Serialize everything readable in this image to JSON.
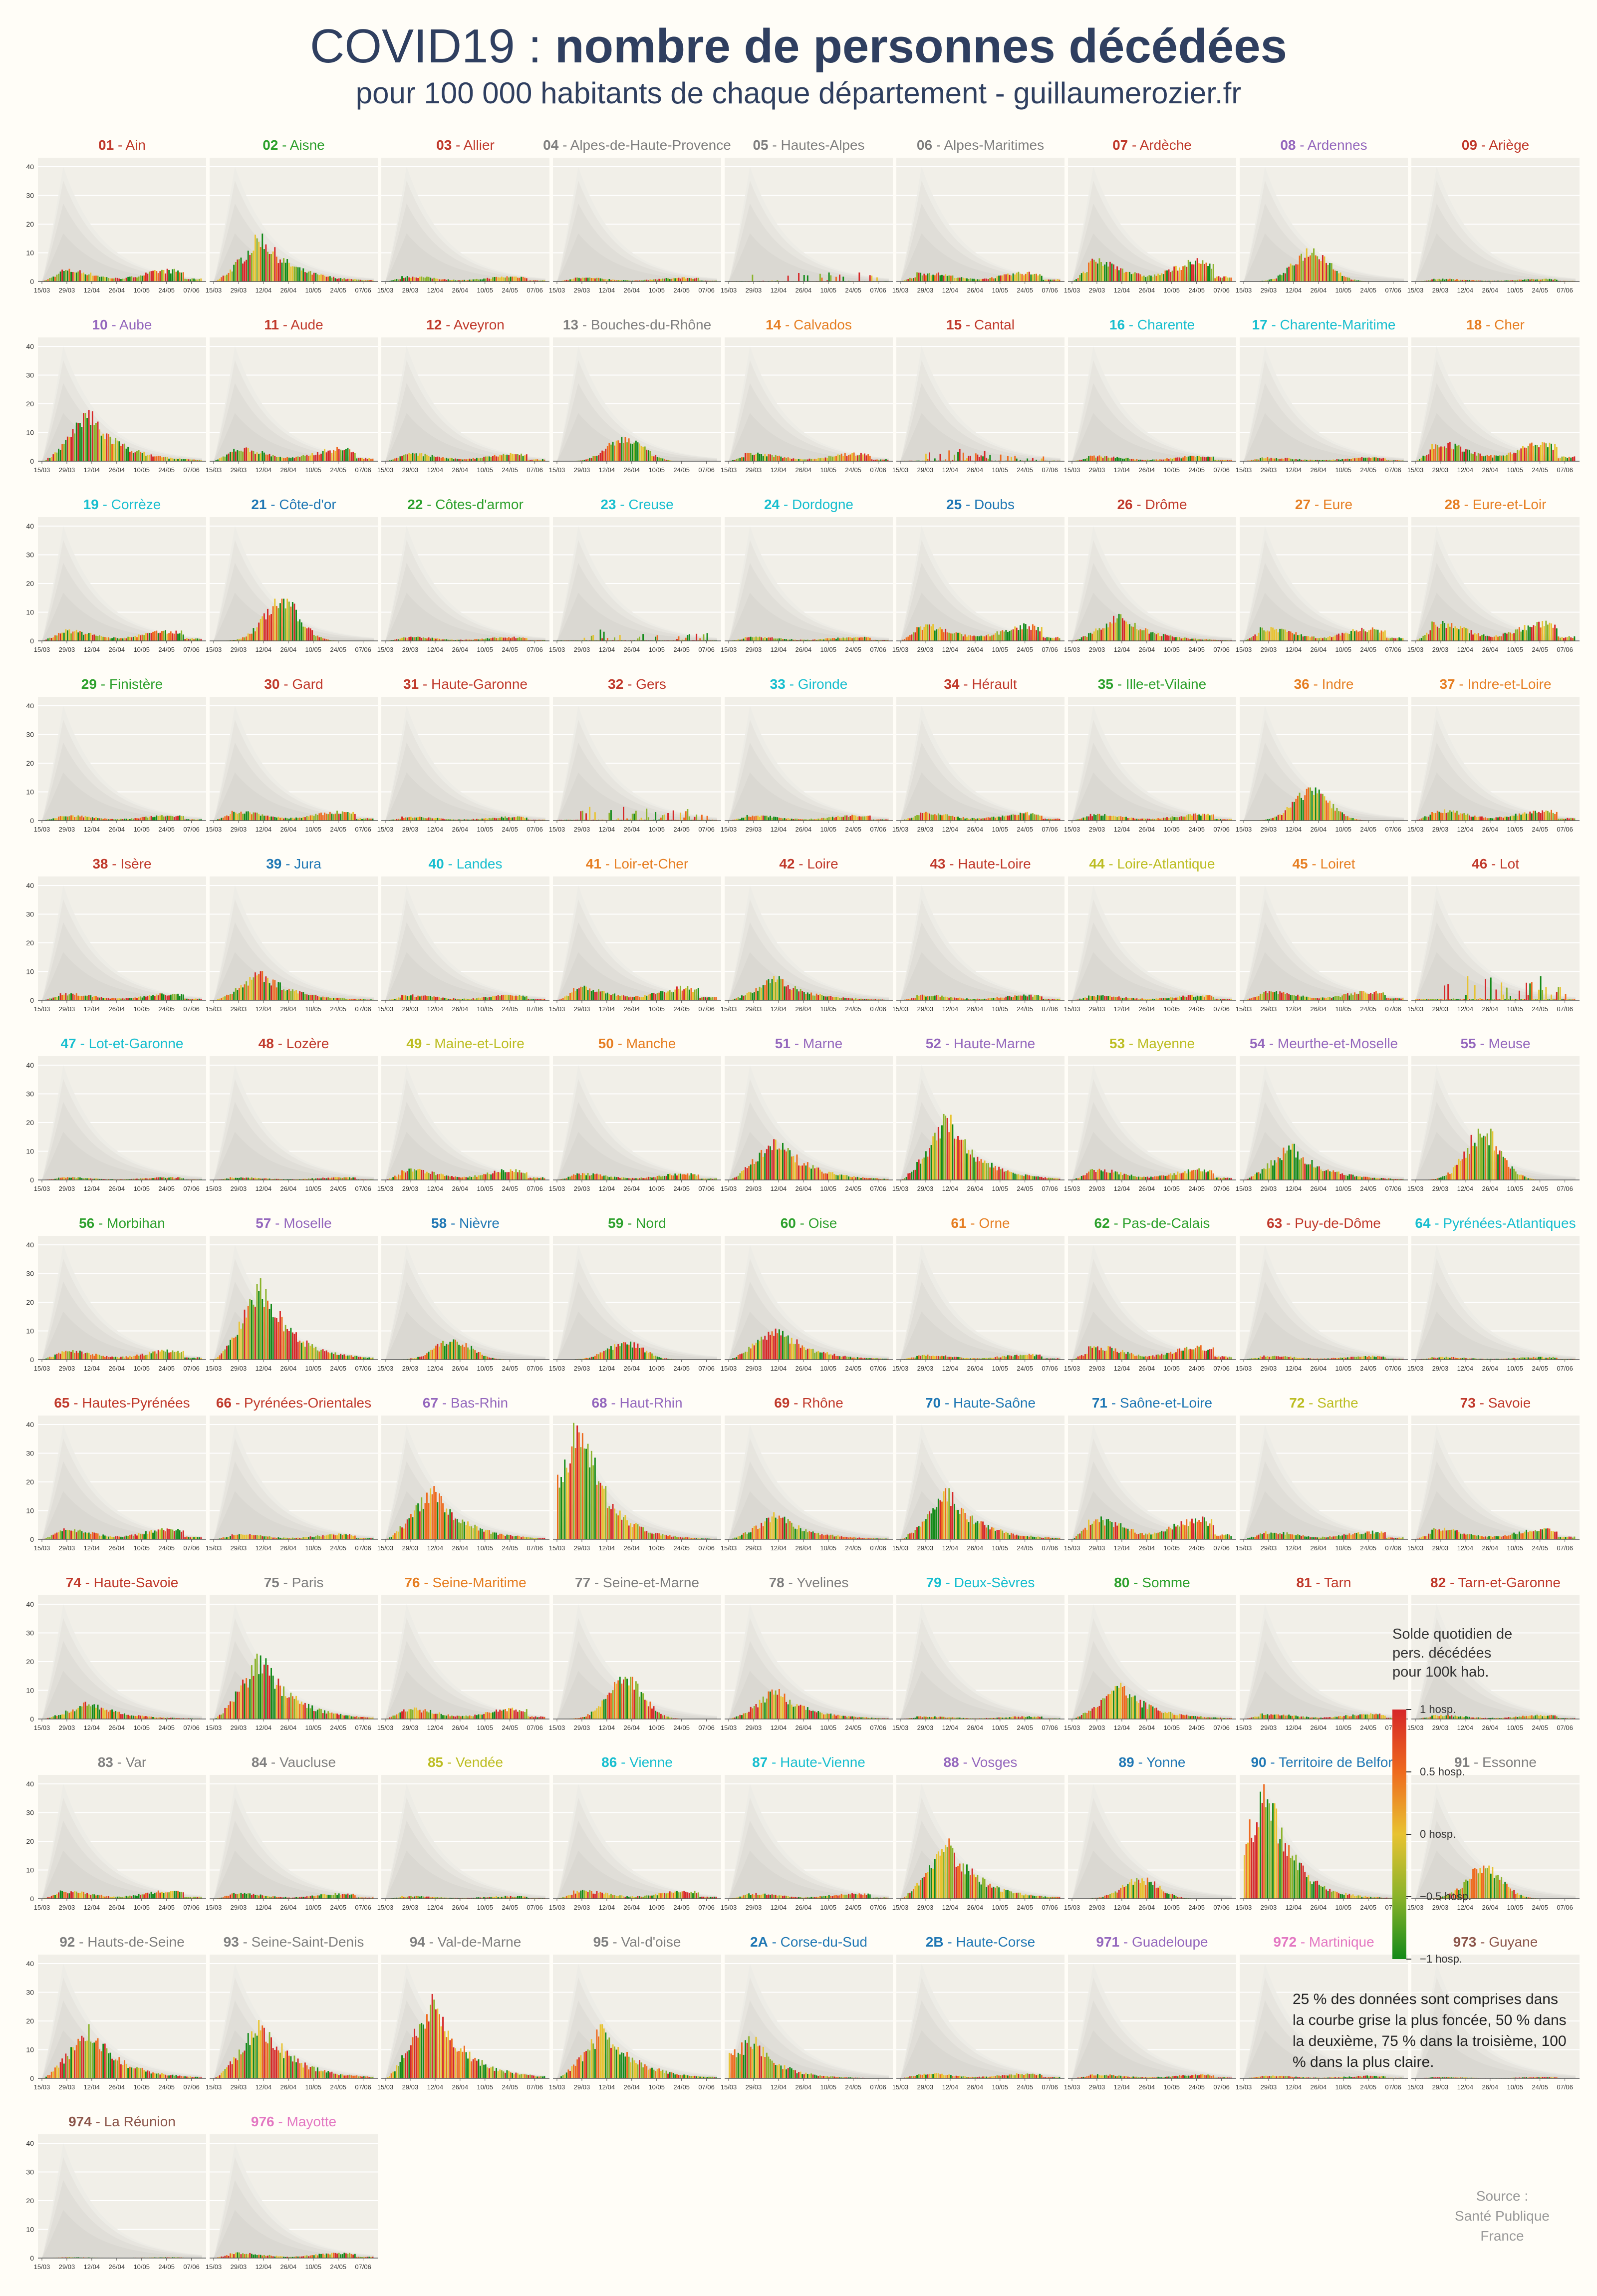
{
  "header": {
    "title_prefix": "COVID19 : ",
    "title_bold": "nombre de personnes décédées",
    "subtitle": "pour 100 000 habitants de chaque département - guillaumerozier.fr"
  },
  "legend": {
    "title": "Solde quotidien de\npers. décédées\npour 100k hab.",
    "ticks": [
      "1 hosp.",
      "0.5 hosp.",
      "0 hosp.",
      "−0.5 hosp.",
      "−1 hosp."
    ],
    "colors": [
      "#d62728",
      "#ee6a1e",
      "#e8c331",
      "#8bb32b",
      "#138a19"
    ]
  },
  "note": "25 % des données sont comprises dans la courbe grise la plus foncée, 50 % dans la deuxième, 75 % dans la troisième, 100 % dans la plus claire.",
  "source": "Source :\nSanté Publique\nFrance",
  "chart_data": {
    "type": "bar",
    "x_ticks": [
      "15/03",
      "29/03",
      "12/04",
      "26/04",
      "10/05",
      "24/05",
      "07/06"
    ],
    "y_ticks": [
      0,
      10,
      20,
      30,
      40
    ],
    "ylim": [
      0,
      40
    ],
    "panels": [
      {
        "code": "01",
        "name": "Ain",
        "color": "#c0392b",
        "peak": 4.5,
        "shape": "flat"
      },
      {
        "code": "02",
        "name": "Aisne",
        "color": "#2ca02c",
        "peak": 16,
        "shape": "early"
      },
      {
        "code": "03",
        "name": "Allier",
        "color": "#c0392b",
        "peak": 2,
        "shape": "flat"
      },
      {
        "code": "04",
        "name": "Alpes-de-Haute-Provence",
        "color": "#7f7f7f",
        "peak": 1.5,
        "shape": "flat"
      },
      {
        "code": "05",
        "name": "Hautes-Alpes",
        "color": "#7f7f7f",
        "peak": 3,
        "shape": "spiky"
      },
      {
        "code": "06",
        "name": "Alpes-Maritimes",
        "color": "#7f7f7f",
        "peak": 3.5,
        "shape": "flat"
      },
      {
        "code": "07",
        "name": "Ardèche",
        "color": "#c0392b",
        "peak": 8,
        "shape": "flat"
      },
      {
        "code": "08",
        "name": "Ardennes",
        "color": "#9467bd",
        "peak": 11,
        "shape": "mid"
      },
      {
        "code": "09",
        "name": "Ariège",
        "color": "#c0392b",
        "peak": 1,
        "shape": "flat"
      },
      {
        "code": "10",
        "name": "Aube",
        "color": "#9467bd",
        "peak": 17,
        "shape": "early"
      },
      {
        "code": "11",
        "name": "Aude",
        "color": "#c0392b",
        "peak": 5,
        "shape": "flat"
      },
      {
        "code": "12",
        "name": "Aveyron",
        "color": "#c0392b",
        "peak": 3,
        "shape": "flat"
      },
      {
        "code": "13",
        "name": "Bouches-du-Rhône",
        "color": "#7f7f7f",
        "peak": 8,
        "shape": "mid"
      },
      {
        "code": "14",
        "name": "Calvados",
        "color": "#e67e22",
        "peak": 3,
        "shape": "flat"
      },
      {
        "code": "15",
        "name": "Cantal",
        "color": "#c0392b",
        "peak": 4,
        "shape": "spiky"
      },
      {
        "code": "16",
        "name": "Charente",
        "color": "#17becf",
        "peak": 2,
        "shape": "flat"
      },
      {
        "code": "17",
        "name": "Charente-Maritime",
        "color": "#17becf",
        "peak": 1.5,
        "shape": "flat"
      },
      {
        "code": "18",
        "name": "Cher",
        "color": "#e67e22",
        "peak": 7,
        "shape": "flat"
      },
      {
        "code": "19",
        "name": "Corrèze",
        "color": "#17becf",
        "peak": 4,
        "shape": "flat"
      },
      {
        "code": "21",
        "name": "Côte-d'or",
        "color": "#1f77b4",
        "peak": 14,
        "shape": "mid"
      },
      {
        "code": "22",
        "name": "Côtes-d'armor",
        "color": "#2ca02c",
        "peak": 1.5,
        "shape": "flat"
      },
      {
        "code": "23",
        "name": "Creuse",
        "color": "#17becf",
        "peak": 4,
        "shape": "spiky"
      },
      {
        "code": "24",
        "name": "Dordogne",
        "color": "#17becf",
        "peak": 1.5,
        "shape": "flat"
      },
      {
        "code": "25",
        "name": "Doubs",
        "color": "#1f77b4",
        "peak": 6,
        "shape": "flat"
      },
      {
        "code": "26",
        "name": "Drôme",
        "color": "#c0392b",
        "peak": 9,
        "shape": "early"
      },
      {
        "code": "27",
        "name": "Eure",
        "color": "#e67e22",
        "peak": 5,
        "shape": "flat"
      },
      {
        "code": "28",
        "name": "Eure-et-Loir",
        "color": "#e67e22",
        "peak": 7,
        "shape": "flat"
      },
      {
        "code": "29",
        "name": "Finistère",
        "color": "#2ca02c",
        "peak": 2,
        "shape": "flat"
      },
      {
        "code": "30",
        "name": "Gard",
        "color": "#c0392b",
        "peak": 3.5,
        "shape": "flat"
      },
      {
        "code": "31",
        "name": "Haute-Garonne",
        "color": "#c0392b",
        "peak": 1.5,
        "shape": "flat"
      },
      {
        "code": "32",
        "name": "Gers",
        "color": "#c0392b",
        "peak": 5,
        "shape": "spiky"
      },
      {
        "code": "33",
        "name": "Gironde",
        "color": "#17becf",
        "peak": 2,
        "shape": "flat"
      },
      {
        "code": "34",
        "name": "Hérault",
        "color": "#c0392b",
        "peak": 3,
        "shape": "flat"
      },
      {
        "code": "35",
        "name": "Ille-et-Vilaine",
        "color": "#2ca02c",
        "peak": 2.5,
        "shape": "flat"
      },
      {
        "code": "36",
        "name": "Indre",
        "color": "#e67e22",
        "peak": 11,
        "shape": "mid"
      },
      {
        "code": "37",
        "name": "Indre-et-Loire",
        "color": "#e67e22",
        "peak": 4,
        "shape": "flat"
      },
      {
        "code": "38",
        "name": "Isère",
        "color": "#c0392b",
        "peak": 2.5,
        "shape": "flat"
      },
      {
        "code": "39",
        "name": "Jura",
        "color": "#1f77b4",
        "peak": 10,
        "shape": "early"
      },
      {
        "code": "40",
        "name": "Landes",
        "color": "#17becf",
        "peak": 2,
        "shape": "flat"
      },
      {
        "code": "41",
        "name": "Loir-et-Cher",
        "color": "#e67e22",
        "peak": 5,
        "shape": "flat"
      },
      {
        "code": "42",
        "name": "Loire",
        "color": "#c0392b",
        "peak": 8,
        "shape": "early"
      },
      {
        "code": "43",
        "name": "Haute-Loire",
        "color": "#c0392b",
        "peak": 2,
        "shape": "flat"
      },
      {
        "code": "44",
        "name": "Loire-Atlantique",
        "color": "#bcbd22",
        "peak": 2,
        "shape": "flat"
      },
      {
        "code": "45",
        "name": "Loiret",
        "color": "#e67e22",
        "peak": 3.5,
        "shape": "flat"
      },
      {
        "code": "46",
        "name": "Lot",
        "color": "#c0392b",
        "peak": 8,
        "shape": "spiky"
      },
      {
        "code": "47",
        "name": "Lot-et-Garonne",
        "color": "#17becf",
        "peak": 1,
        "shape": "flat"
      },
      {
        "code": "48",
        "name": "Lozère",
        "color": "#c0392b",
        "peak": 1,
        "shape": "flat"
      },
      {
        "code": "49",
        "name": "Maine-et-Loire",
        "color": "#bcbd22",
        "peak": 4,
        "shape": "flat"
      },
      {
        "code": "50",
        "name": "Manche",
        "color": "#e67e22",
        "peak": 2.5,
        "shape": "flat"
      },
      {
        "code": "51",
        "name": "Marne",
        "color": "#9467bd",
        "peak": 15,
        "shape": "early"
      },
      {
        "code": "52",
        "name": "Haute-Marne",
        "color": "#9467bd",
        "peak": 22,
        "shape": "early"
      },
      {
        "code": "53",
        "name": "Mayenne",
        "color": "#bcbd22",
        "peak": 4,
        "shape": "flat"
      },
      {
        "code": "54",
        "name": "Meurthe-et-Moselle",
        "color": "#9467bd",
        "peak": 12,
        "shape": "early"
      },
      {
        "code": "55",
        "name": "Meuse",
        "color": "#9467bd",
        "peak": 17,
        "shape": "mid"
      },
      {
        "code": "56",
        "name": "Morbihan",
        "color": "#2ca02c",
        "peak": 3.5,
        "shape": "flat"
      },
      {
        "code": "57",
        "name": "Moselle",
        "color": "#9467bd",
        "peak": 27,
        "shape": "early"
      },
      {
        "code": "58",
        "name": "Nièvre",
        "color": "#1f77b4",
        "peak": 7,
        "shape": "mid"
      },
      {
        "code": "59",
        "name": "Nord",
        "color": "#2ca02c",
        "peak": 6,
        "shape": "mid"
      },
      {
        "code": "60",
        "name": "Oise",
        "color": "#2ca02c",
        "peak": 12,
        "shape": "early"
      },
      {
        "code": "61",
        "name": "Orne",
        "color": "#e67e22",
        "peak": 2,
        "shape": "flat"
      },
      {
        "code": "62",
        "name": "Pas-de-Calais",
        "color": "#2ca02c",
        "peak": 5,
        "shape": "flat"
      },
      {
        "code": "63",
        "name": "Puy-de-Dôme",
        "color": "#c0392b",
        "peak": 1.5,
        "shape": "flat"
      },
      {
        "code": "64",
        "name": "Pyrénées-Atlantiques",
        "color": "#17becf",
        "peak": 1,
        "shape": "flat"
      },
      {
        "code": "65",
        "name": "Hautes-Pyrénées",
        "color": "#c0392b",
        "peak": 4,
        "shape": "flat"
      },
      {
        "code": "66",
        "name": "Pyrénées-Orientales",
        "color": "#c0392b",
        "peak": 2,
        "shape": "flat"
      },
      {
        "code": "67",
        "name": "Bas-Rhin",
        "color": "#9467bd",
        "peak": 18,
        "shape": "early"
      },
      {
        "code": "68",
        "name": "Haut-Rhin",
        "color": "#9467bd",
        "peak": 41,
        "shape": "veryearly"
      },
      {
        "code": "69",
        "name": "Rhône",
        "color": "#c0392b",
        "peak": 9,
        "shape": "early"
      },
      {
        "code": "70",
        "name": "Haute-Saône",
        "color": "#1f77b4",
        "peak": 17,
        "shape": "early"
      },
      {
        "code": "71",
        "name": "Saône-et-Loire",
        "color": "#1f77b4",
        "peak": 8,
        "shape": "flat"
      },
      {
        "code": "72",
        "name": "Sarthe",
        "color": "#bcbd22",
        "peak": 3,
        "shape": "flat"
      },
      {
        "code": "73",
        "name": "Savoie",
        "color": "#c0392b",
        "peak": 4,
        "shape": "flat"
      },
      {
        "code": "74",
        "name": "Haute-Savoie",
        "color": "#c0392b",
        "peak": 6,
        "shape": "early"
      },
      {
        "code": "75",
        "name": "Paris",
        "color": "#7f7f7f",
        "peak": 22,
        "shape": "early"
      },
      {
        "code": "76",
        "name": "Seine-Maritime",
        "color": "#e67e22",
        "peak": 4,
        "shape": "flat"
      },
      {
        "code": "77",
        "name": "Seine-et-Marne",
        "color": "#7f7f7f",
        "peak": 14,
        "shape": "mid"
      },
      {
        "code": "78",
        "name": "Yvelines",
        "color": "#7f7f7f",
        "peak": 10,
        "shape": "early"
      },
      {
        "code": "79",
        "name": "Deux-Sèvres",
        "color": "#17becf",
        "peak": 1,
        "shape": "flat"
      },
      {
        "code": "80",
        "name": "Somme",
        "color": "#2ca02c",
        "peak": 12,
        "shape": "early"
      },
      {
        "code": "81",
        "name": "Tarn",
        "color": "#c0392b",
        "peak": 2,
        "shape": "flat"
      },
      {
        "code": "82",
        "name": "Tarn-et-Garonne",
        "color": "#c0392b",
        "peak": 1.5,
        "shape": "flat"
      },
      {
        "code": "83",
        "name": "Var",
        "color": "#7f7f7f",
        "peak": 3,
        "shape": "flat"
      },
      {
        "code": "84",
        "name": "Vaucluse",
        "color": "#7f7f7f",
        "peak": 2,
        "shape": "flat"
      },
      {
        "code": "85",
        "name": "Vendée",
        "color": "#bcbd22",
        "peak": 1,
        "shape": "flat"
      },
      {
        "code": "86",
        "name": "Vienne",
        "color": "#17becf",
        "peak": 3,
        "shape": "flat"
      },
      {
        "code": "87",
        "name": "Haute-Vienne",
        "color": "#17becf",
        "peak": 2,
        "shape": "flat"
      },
      {
        "code": "88",
        "name": "Vosges",
        "color": "#9467bd",
        "peak": 20,
        "shape": "early"
      },
      {
        "code": "89",
        "name": "Yonne",
        "color": "#1f77b4",
        "peak": 7,
        "shape": "mid"
      },
      {
        "code": "90",
        "name": "Territoire de Belfort",
        "color": "#1f77b4",
        "peak": 38,
        "shape": "veryearly"
      },
      {
        "code": "91",
        "name": "Essonne",
        "color": "#7f7f7f",
        "peak": 11,
        "shape": "mid"
      },
      {
        "code": "92",
        "name": "Hauts-de-Seine",
        "color": "#7f7f7f",
        "peak": 18,
        "shape": "early"
      },
      {
        "code": "93",
        "name": "Seine-Saint-Denis",
        "color": "#7f7f7f",
        "peak": 21,
        "shape": "early"
      },
      {
        "code": "94",
        "name": "Val-de-Marne",
        "color": "#7f7f7f",
        "peak": 28,
        "shape": "early"
      },
      {
        "code": "95",
        "name": "Val-d'oise",
        "color": "#7f7f7f",
        "peak": 18,
        "shape": "early"
      },
      {
        "code": "2A",
        "name": "Corse-du-Sud",
        "color": "#1f77b4",
        "peak": 14,
        "shape": "veryearly"
      },
      {
        "code": "2B",
        "name": "Haute-Corse",
        "color": "#1f77b4",
        "peak": 2,
        "shape": "flat"
      },
      {
        "code": "971",
        "name": "Guadeloupe",
        "color": "#9467bd",
        "peak": 1.5,
        "shape": "flat"
      },
      {
        "code": "972",
        "name": "Martinique",
        "color": "#e377c2",
        "peak": 1,
        "shape": "flat"
      },
      {
        "code": "973",
        "name": "Guyane",
        "color": "#8c564b",
        "peak": 0.5,
        "shape": "flat"
      },
      {
        "code": "974",
        "name": "La Réunion",
        "color": "#8c564b",
        "peak": 0.3,
        "shape": "flat"
      },
      {
        "code": "976",
        "name": "Mayotte",
        "color": "#e377c2",
        "peak": 2,
        "shape": "flat"
      }
    ]
  }
}
